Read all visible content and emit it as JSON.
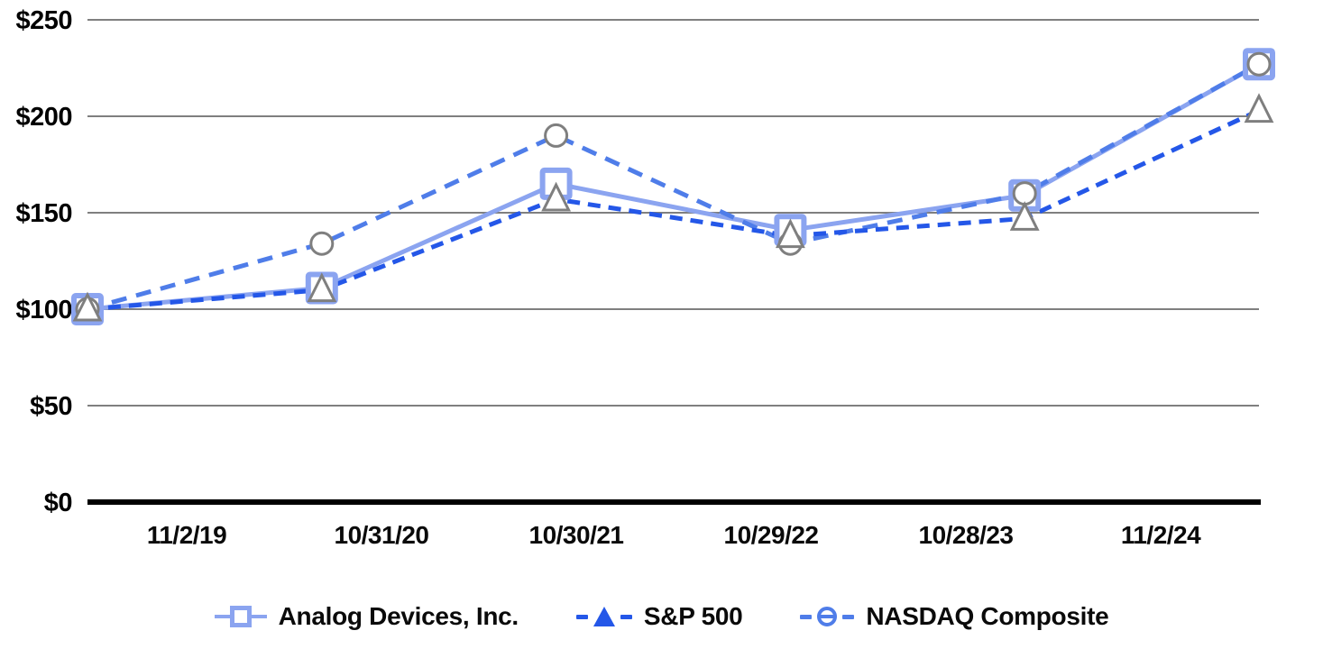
{
  "chart_data": {
    "type": "line",
    "title": "",
    "categories": [
      "11/2/19",
      "10/31/20",
      "10/30/21",
      "10/29/22",
      "10/28/23",
      "11/2/24"
    ],
    "series": [
      {
        "name": "Analog Devices, Inc.",
        "values": [
          100,
          111,
          165,
          141,
          159,
          227
        ],
        "color": "#8BA4F0",
        "line_style": "solid",
        "marker": "square",
        "marker_color": "#8BA4F0"
      },
      {
        "name": "S&P 500",
        "values": [
          100,
          110,
          157,
          138,
          147,
          203
        ],
        "color": "#2457E8",
        "line_style": "dashed",
        "marker": "triangle",
        "marker_color": "#7F7F7F"
      },
      {
        "name": "NASDAQ Composite",
        "values": [
          100,
          134,
          190,
          134,
          160,
          227
        ],
        "color": "#4F7DE9",
        "line_style": "dashed",
        "marker": "circle",
        "marker_color": "#7F7F7F"
      }
    ],
    "y_axis": {
      "ticks": [
        0,
        50,
        100,
        150,
        200,
        250
      ],
      "tick_labels": [
        "$0",
        "$50",
        "$100",
        "$150",
        "$200",
        "$250"
      ],
      "ylim": [
        0,
        250
      ]
    },
    "grid": "horizontal",
    "legend_position": "bottom"
  },
  "colors": {
    "grid": "#7F7F7F",
    "axis": "#000000",
    "adi": "#8BA4F0",
    "sp500": "#2457E8",
    "nasdaq": "#4F7DE9",
    "marker_gray": "#7F7F7F"
  }
}
